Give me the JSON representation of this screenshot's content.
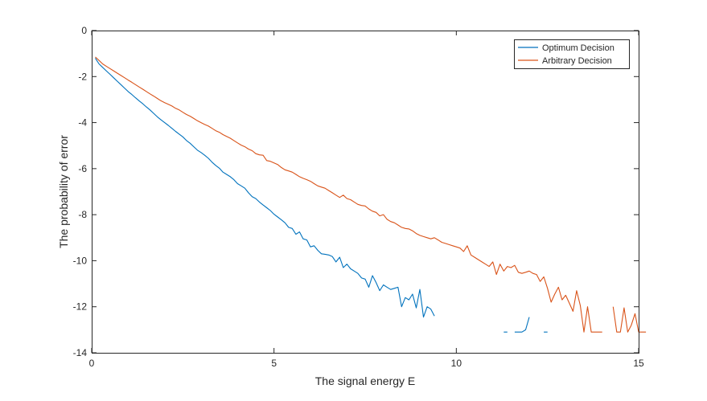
{
  "chart_data": {
    "type": "line",
    "title": "",
    "xlabel": "The signal energy E",
    "ylabel": "The probability of error",
    "xlim": [
      0,
      15
    ],
    "ylim": [
      -14,
      0
    ],
    "xticks": [
      0,
      5,
      10,
      15
    ],
    "yticks": [
      0,
      -2,
      -4,
      -6,
      -8,
      -10,
      -12,
      -14
    ],
    "xtick_labels": [
      "0",
      "5",
      "10",
      "15"
    ],
    "ytick_labels": [
      "0",
      "-2",
      "-4",
      "-6",
      "-8",
      "-10",
      "-12",
      "-14"
    ],
    "grid": false,
    "box": true,
    "legend_location": "top-right",
    "series": [
      {
        "name": "Optimum Decision",
        "color": "#0072BD",
        "segments": [
          [
            [
              0.1,
              -1.2
            ],
            [
              0.2,
              -1.45
            ],
            [
              0.3,
              -1.6
            ],
            [
              0.4,
              -1.75
            ],
            [
              0.5,
              -1.9
            ],
            [
              0.6,
              -2.05
            ],
            [
              0.7,
              -2.2
            ],
            [
              0.8,
              -2.35
            ],
            [
              0.9,
              -2.5
            ],
            [
              1.0,
              -2.65
            ],
            [
              1.1,
              -2.78
            ],
            [
              1.2,
              -2.92
            ],
            [
              1.3,
              -3.05
            ],
            [
              1.4,
              -3.18
            ],
            [
              1.5,
              -3.32
            ],
            [
              1.6,
              -3.45
            ],
            [
              1.7,
              -3.6
            ],
            [
              1.8,
              -3.75
            ],
            [
              1.9,
              -3.88
            ],
            [
              2.0,
              -4.0
            ],
            [
              2.1,
              -4.12
            ],
            [
              2.2,
              -4.25
            ],
            [
              2.3,
              -4.38
            ],
            [
              2.4,
              -4.5
            ],
            [
              2.5,
              -4.62
            ],
            [
              2.6,
              -4.78
            ],
            [
              2.7,
              -4.9
            ],
            [
              2.8,
              -5.05
            ],
            [
              2.9,
              -5.2
            ],
            [
              3.0,
              -5.3
            ],
            [
              3.1,
              -5.42
            ],
            [
              3.2,
              -5.55
            ],
            [
              3.3,
              -5.72
            ],
            [
              3.4,
              -5.86
            ],
            [
              3.5,
              -5.98
            ],
            [
              3.6,
              -6.15
            ],
            [
              3.7,
              -6.25
            ],
            [
              3.8,
              -6.35
            ],
            [
              3.9,
              -6.48
            ],
            [
              4.0,
              -6.65
            ],
            [
              4.1,
              -6.75
            ],
            [
              4.2,
              -6.85
            ],
            [
              4.3,
              -7.05
            ],
            [
              4.4,
              -7.22
            ],
            [
              4.5,
              -7.3
            ],
            [
              4.6,
              -7.45
            ],
            [
              4.7,
              -7.58
            ],
            [
              4.8,
              -7.7
            ],
            [
              4.9,
              -7.82
            ],
            [
              5.0,
              -7.98
            ],
            [
              5.1,
              -8.1
            ],
            [
              5.2,
              -8.22
            ],
            [
              5.3,
              -8.35
            ],
            [
              5.4,
              -8.55
            ],
            [
              5.5,
              -8.6
            ],
            [
              5.6,
              -8.85
            ],
            [
              5.7,
              -8.75
            ],
            [
              5.8,
              -9.05
            ],
            [
              5.9,
              -9.1
            ],
            [
              6.0,
              -9.4
            ],
            [
              6.1,
              -9.35
            ],
            [
              6.2,
              -9.55
            ],
            [
              6.3,
              -9.7
            ],
            [
              6.4,
              -9.72
            ],
            [
              6.5,
              -9.75
            ],
            [
              6.6,
              -9.82
            ],
            [
              6.7,
              -10.05
            ],
            [
              6.8,
              -9.85
            ],
            [
              6.9,
              -10.3
            ],
            [
              7.0,
              -10.15
            ],
            [
              7.1,
              -10.35
            ],
            [
              7.2,
              -10.45
            ],
            [
              7.3,
              -10.55
            ],
            [
              7.4,
              -10.75
            ],
            [
              7.5,
              -10.8
            ],
            [
              7.6,
              -11.15
            ],
            [
              7.7,
              -10.65
            ],
            [
              7.8,
              -10.95
            ],
            [
              7.9,
              -11.3
            ],
            [
              8.0,
              -11.05
            ],
            [
              8.1,
              -11.15
            ],
            [
              8.2,
              -11.25
            ],
            [
              8.3,
              -11.2
            ],
            [
              8.4,
              -11.15
            ],
            [
              8.5,
              -12.0
            ],
            [
              8.6,
              -11.6
            ],
            [
              8.7,
              -11.7
            ],
            [
              8.8,
              -11.45
            ],
            [
              8.9,
              -12.05
            ],
            [
              9.0,
              -11.25
            ],
            [
              9.1,
              -12.45
            ],
            [
              9.2,
              -12.0
            ],
            [
              9.3,
              -12.1
            ],
            [
              9.4,
              -12.4
            ]
          ],
          [
            [
              11.3,
              -13.1
            ],
            [
              11.4,
              -13.1
            ]
          ],
          [
            [
              11.6,
              -13.1
            ],
            [
              11.8,
              -13.1
            ],
            [
              11.9,
              -13.0
            ],
            [
              12.0,
              -12.45
            ]
          ],
          [
            [
              12.4,
              -13.1
            ],
            [
              12.5,
              -13.1
            ]
          ]
        ]
      },
      {
        "name": "Arbitrary Decision",
        "color": "#D95319",
        "segments": [
          [
            [
              0.1,
              -1.15
            ],
            [
              0.2,
              -1.3
            ],
            [
              0.3,
              -1.45
            ],
            [
              0.4,
              -1.55
            ],
            [
              0.5,
              -1.65
            ],
            [
              0.6,
              -1.75
            ],
            [
              0.7,
              -1.85
            ],
            [
              0.8,
              -1.95
            ],
            [
              0.9,
              -2.05
            ],
            [
              1.0,
              -2.15
            ],
            [
              1.1,
              -2.25
            ],
            [
              1.2,
              -2.35
            ],
            [
              1.3,
              -2.45
            ],
            [
              1.4,
              -2.55
            ],
            [
              1.5,
              -2.65
            ],
            [
              1.6,
              -2.75
            ],
            [
              1.7,
              -2.85
            ],
            [
              1.8,
              -2.95
            ],
            [
              1.9,
              -3.05
            ],
            [
              2.0,
              -3.13
            ],
            [
              2.1,
              -3.2
            ],
            [
              2.2,
              -3.28
            ],
            [
              2.3,
              -3.38
            ],
            [
              2.4,
              -3.45
            ],
            [
              2.5,
              -3.55
            ],
            [
              2.6,
              -3.65
            ],
            [
              2.7,
              -3.72
            ],
            [
              2.8,
              -3.82
            ],
            [
              2.9,
              -3.92
            ],
            [
              3.0,
              -4.0
            ],
            [
              3.1,
              -4.08
            ],
            [
              3.2,
              -4.15
            ],
            [
              3.3,
              -4.25
            ],
            [
              3.4,
              -4.35
            ],
            [
              3.5,
              -4.42
            ],
            [
              3.6,
              -4.52
            ],
            [
              3.7,
              -4.6
            ],
            [
              3.8,
              -4.68
            ],
            [
              3.9,
              -4.78
            ],
            [
              4.0,
              -4.88
            ],
            [
              4.1,
              -4.98
            ],
            [
              4.2,
              -5.05
            ],
            [
              4.3,
              -5.15
            ],
            [
              4.4,
              -5.22
            ],
            [
              4.5,
              -5.35
            ],
            [
              4.6,
              -5.4
            ],
            [
              4.7,
              -5.42
            ],
            [
              4.8,
              -5.65
            ],
            [
              4.9,
              -5.68
            ],
            [
              5.0,
              -5.75
            ],
            [
              5.1,
              -5.82
            ],
            [
              5.2,
              -5.95
            ],
            [
              5.3,
              -6.05
            ],
            [
              5.4,
              -6.1
            ],
            [
              5.5,
              -6.15
            ],
            [
              5.6,
              -6.25
            ],
            [
              5.7,
              -6.35
            ],
            [
              5.8,
              -6.42
            ],
            [
              5.9,
              -6.48
            ],
            [
              6.0,
              -6.55
            ],
            [
              6.1,
              -6.65
            ],
            [
              6.2,
              -6.75
            ],
            [
              6.3,
              -6.8
            ],
            [
              6.4,
              -6.85
            ],
            [
              6.5,
              -6.95
            ],
            [
              6.6,
              -7.05
            ],
            [
              6.7,
              -7.15
            ],
            [
              6.8,
              -7.25
            ],
            [
              6.9,
              -7.15
            ],
            [
              7.0,
              -7.3
            ],
            [
              7.1,
              -7.35
            ],
            [
              7.2,
              -7.45
            ],
            [
              7.3,
              -7.55
            ],
            [
              7.4,
              -7.6
            ],
            [
              7.5,
              -7.62
            ],
            [
              7.6,
              -7.75
            ],
            [
              7.7,
              -7.85
            ],
            [
              7.8,
              -7.9
            ],
            [
              7.9,
              -8.05
            ],
            [
              8.0,
              -8.0
            ],
            [
              8.1,
              -8.2
            ],
            [
              8.2,
              -8.3
            ],
            [
              8.3,
              -8.35
            ],
            [
              8.4,
              -8.45
            ],
            [
              8.5,
              -8.55
            ],
            [
              8.6,
              -8.6
            ],
            [
              8.7,
              -8.62
            ],
            [
              8.8,
              -8.7
            ],
            [
              8.9,
              -8.82
            ],
            [
              9.0,
              -8.9
            ],
            [
              9.1,
              -8.95
            ],
            [
              9.2,
              -9.0
            ],
            [
              9.3,
              -9.05
            ],
            [
              9.4,
              -9.0
            ],
            [
              9.5,
              -9.1
            ],
            [
              9.6,
              -9.2
            ],
            [
              9.7,
              -9.25
            ],
            [
              9.8,
              -9.3
            ],
            [
              9.9,
              -9.35
            ],
            [
              10.0,
              -9.4
            ],
            [
              10.1,
              -9.45
            ],
            [
              10.2,
              -9.6
            ],
            [
              10.3,
              -9.35
            ],
            [
              10.4,
              -9.75
            ],
            [
              10.5,
              -9.85
            ],
            [
              10.6,
              -9.95
            ],
            [
              10.7,
              -10.05
            ],
            [
              10.8,
              -10.15
            ],
            [
              10.9,
              -10.25
            ],
            [
              11.0,
              -10.05
            ],
            [
              11.1,
              -10.6
            ],
            [
              11.2,
              -10.15
            ],
            [
              11.3,
              -10.45
            ],
            [
              11.4,
              -10.25
            ],
            [
              11.5,
              -10.3
            ],
            [
              11.6,
              -10.2
            ],
            [
              11.7,
              -10.5
            ],
            [
              11.8,
              -10.55
            ],
            [
              11.9,
              -10.5
            ],
            [
              12.0,
              -10.45
            ],
            [
              12.1,
              -10.55
            ],
            [
              12.2,
              -10.6
            ],
            [
              12.3,
              -10.9
            ],
            [
              12.4,
              -10.7
            ],
            [
              12.5,
              -11.2
            ],
            [
              12.6,
              -11.8
            ],
            [
              12.7,
              -11.45
            ],
            [
              12.8,
              -11.15
            ],
            [
              12.9,
              -11.7
            ],
            [
              13.0,
              -11.5
            ],
            [
              13.1,
              -11.85
            ],
            [
              13.2,
              -12.2
            ],
            [
              13.3,
              -11.3
            ],
            [
              13.4,
              -11.95
            ],
            [
              13.5,
              -13.1
            ],
            [
              13.6,
              -12.0
            ],
            [
              13.7,
              -13.1
            ],
            [
              13.8,
              -13.1
            ],
            [
              13.9,
              -13.1
            ],
            [
              14.0,
              -13.1
            ]
          ],
          [
            [
              14.3,
              -12.0
            ],
            [
              14.4,
              -13.1
            ],
            [
              14.5,
              -13.1
            ],
            [
              14.6,
              -12.05
            ],
            [
              14.7,
              -13.1
            ],
            [
              14.8,
              -12.8
            ],
            [
              14.9,
              -12.3
            ],
            [
              15.0,
              -13.1
            ],
            [
              15.1,
              -13.1
            ],
            [
              15.2,
              -13.1
            ]
          ]
        ]
      }
    ]
  }
}
